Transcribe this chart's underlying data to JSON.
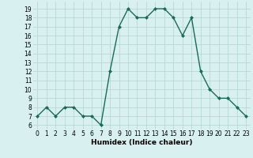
{
  "x": [
    0,
    1,
    2,
    3,
    4,
    5,
    6,
    7,
    8,
    9,
    10,
    11,
    12,
    13,
    14,
    15,
    16,
    17,
    18,
    19,
    20,
    21,
    22,
    23
  ],
  "y": [
    7,
    8,
    7,
    8,
    8,
    7,
    7,
    6,
    12,
    17,
    19,
    18,
    18,
    19,
    19,
    18,
    16,
    18,
    12,
    10,
    9,
    9,
    8,
    7
  ],
  "line_color": "#1a6b5a",
  "marker": "D",
  "marker_size": 2.0,
  "bg_color": "#d9f0f0",
  "grid_color": "#b8d8d8",
  "xlabel": "Humidex (Indice chaleur)",
  "xlabel_fontsize": 6.5,
  "ylabel_ticks": [
    6,
    7,
    8,
    9,
    10,
    11,
    12,
    13,
    14,
    15,
    16,
    17,
    18,
    19
  ],
  "ylim": [
    5.5,
    19.8
  ],
  "xlim": [
    -0.5,
    23.5
  ],
  "tick_fontsize": 5.5,
  "linewidth": 1.0
}
